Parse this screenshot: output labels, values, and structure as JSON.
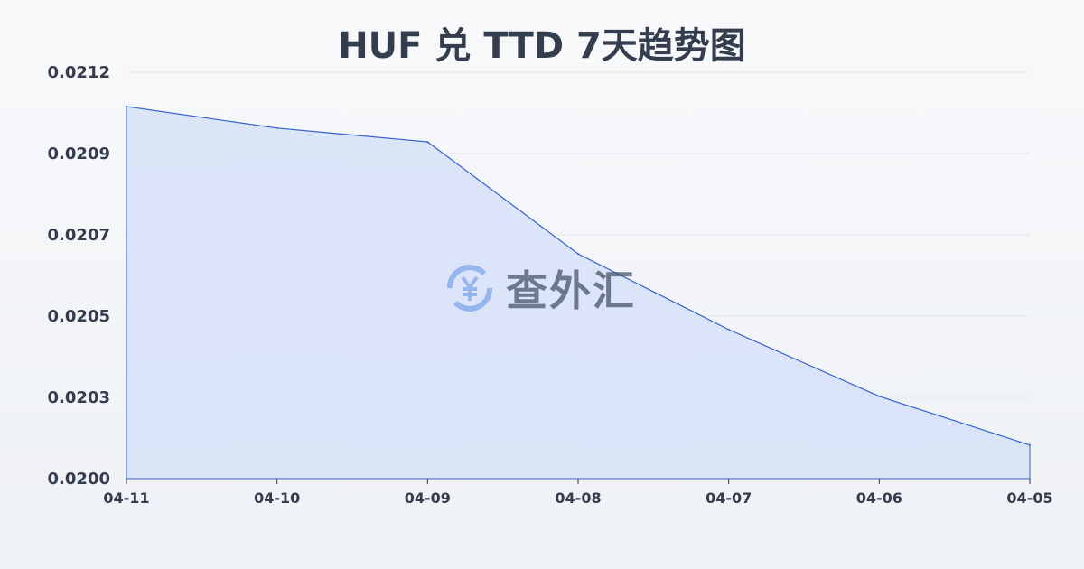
{
  "chart_data": {
    "type": "area",
    "title": "HUF 兑 TTD 7天趋势图",
    "xlabel": "",
    "ylabel": "",
    "categories": [
      "04-11",
      "04-10",
      "04-09",
      "04-08",
      "04-07",
      "04-06",
      "04-05"
    ],
    "series": [
      {
        "values": [
          0.021073,
          0.021012,
          0.020973,
          0.020656,
          0.020442,
          0.020253,
          0.020115
        ]
      }
    ],
    "ylim": [
      0.02002,
      0.02117
    ],
    "yticks": [
      "0.0200",
      "0.0203",
      "0.0205",
      "0.0207",
      "0.0209",
      "0.0212"
    ],
    "grid": true,
    "colors": {
      "line": "#3461d1",
      "fill": "#d4e0f7"
    }
  },
  "watermark": {
    "text": "查外汇",
    "icon": "yen-exchange-icon"
  }
}
